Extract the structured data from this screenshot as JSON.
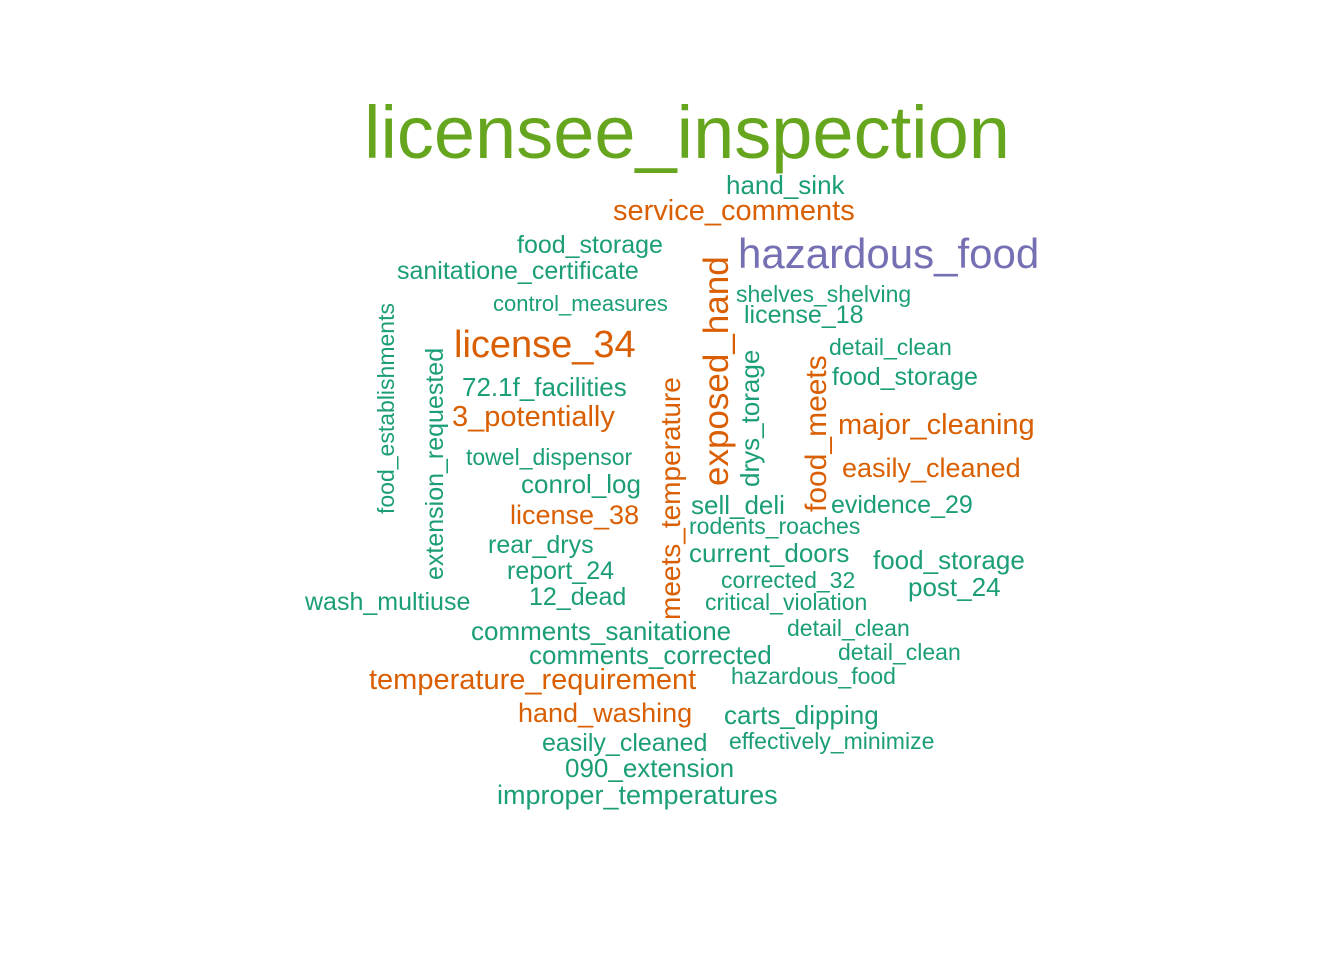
{
  "colors": {
    "green": "#66A61E",
    "orange": "#D95F02",
    "purple": "#7570B3",
    "teal": "#1B9E77"
  },
  "words": {
    "w01": "licensee_inspection",
    "w02": "hand_sink",
    "w03": "service_comments",
    "w04": "food_storage",
    "w05": "hazardous_food",
    "w06": "sanitatione_certificate",
    "w07": "shelves_shelving",
    "w08": "control_measures",
    "w09": "license_18",
    "w10": "license_34",
    "w11": "detail_clean",
    "w12": "food_storage",
    "w13": "72.1f_facilities",
    "w14": "3_potentially",
    "w15": "major_cleaning",
    "w16": "towel_dispensor",
    "w17": "easily_cleaned",
    "w18": "conrol_log",
    "w19": "sell_deli",
    "w20": "evidence_29",
    "w21": "license_38",
    "w22": "rodents_roaches",
    "w23": "rear_drys",
    "w24": "current_doors",
    "w25": "food_storage",
    "w26": "report_24",
    "w27": "corrected_32",
    "w28": "post_24",
    "w29": "wash_multiuse",
    "w30": "12_dead",
    "w31": "critical_violation",
    "w32": "comments_sanitatione",
    "w33": "detail_clean",
    "w34": "comments_corrected",
    "w35": "detail_clean",
    "w36": "temperature_requirement",
    "w37": "hazardous_food",
    "w38": "hand_washing",
    "w39": "carts_dipping",
    "w40": "easily_cleaned",
    "w41": "effectively_minimize",
    "w42": "090_extension",
    "w43": "improper_temperatures",
    "v01": "food_establishments",
    "v02": "extension_requested",
    "v03": "meets_temperature",
    "v04": "exposed_hand",
    "v05": "drys_torage",
    "v06": "food_meets"
  }
}
